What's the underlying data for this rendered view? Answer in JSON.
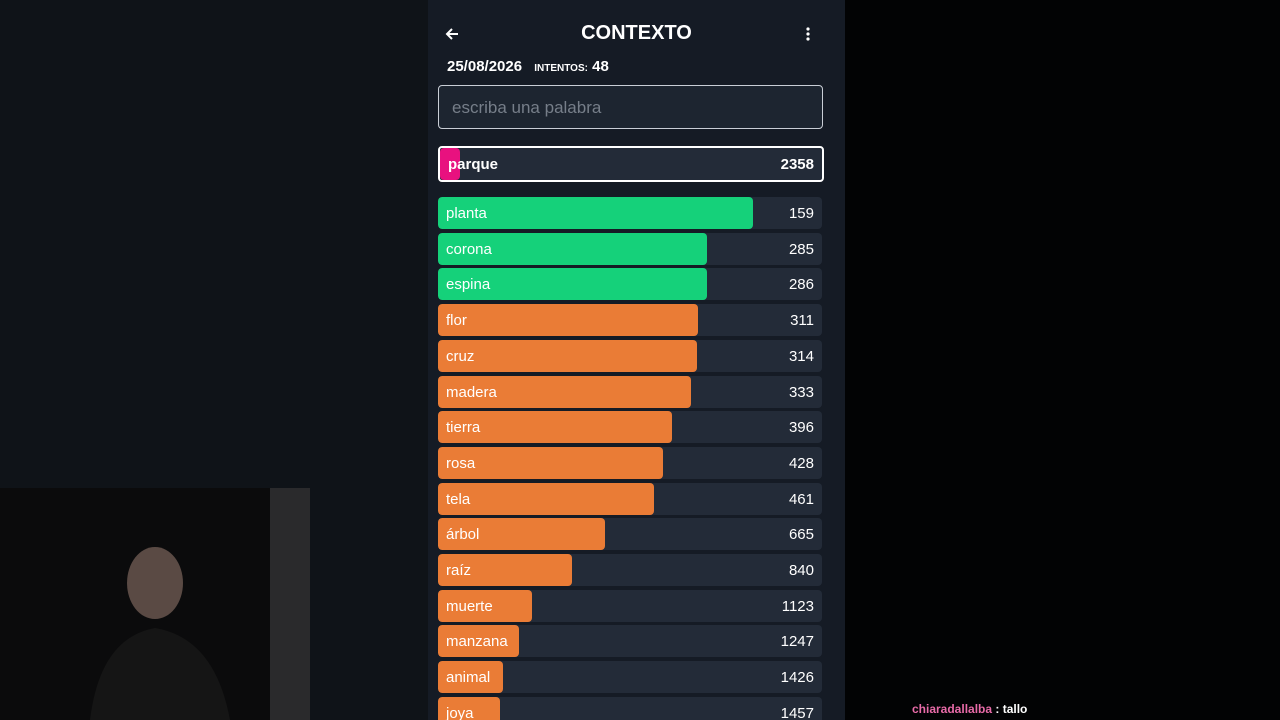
{
  "header": {
    "title": "CONTEXTO",
    "date": "25/08/2026",
    "attempts_label": "INTENTOS:",
    "attempts": 48
  },
  "input": {
    "placeholder": "escriba una palabra"
  },
  "last_guess": {
    "word": "parque",
    "rank": 2358,
    "color": "#e8117f"
  },
  "guesses": [
    {
      "word": "planta",
      "rank": 159,
      "color": "#15d17a"
    },
    {
      "word": "corona",
      "rank": 285,
      "color": "#15d17a"
    },
    {
      "word": "espina",
      "rank": 286,
      "color": "#15d17a"
    },
    {
      "word": "flor",
      "rank": 311,
      "color": "#ea7c36"
    },
    {
      "word": "cruz",
      "rank": 314,
      "color": "#ea7c36"
    },
    {
      "word": "madera",
      "rank": 333,
      "color": "#ea7c36"
    },
    {
      "word": "tierra",
      "rank": 396,
      "color": "#ea7c36"
    },
    {
      "word": "rosa",
      "rank": 428,
      "color": "#ea7c36"
    },
    {
      "word": "tela",
      "rank": 461,
      "color": "#ea7c36"
    },
    {
      "word": "árbol",
      "rank": 665,
      "color": "#ea7c36"
    },
    {
      "word": "raíz",
      "rank": 840,
      "color": "#ea7c36"
    },
    {
      "word": "muerte",
      "rank": 1123,
      "color": "#ea7c36"
    },
    {
      "word": "manzana",
      "rank": 1247,
      "color": "#ea7c36"
    },
    {
      "word": "animal",
      "rank": 1426,
      "color": "#ea7c36"
    },
    {
      "word": "joya",
      "rank": 1457,
      "color": "#ea7c36"
    }
  ],
  "chat": {
    "user": "chiaradallalba",
    "message": ": tallo"
  }
}
